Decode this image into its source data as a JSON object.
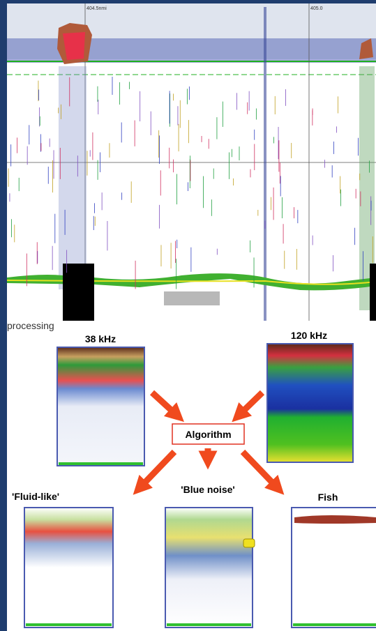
{
  "echogram": {
    "distance_labels": [
      "404.5nmi",
      "405.0"
    ]
  },
  "diagram": {
    "section_label": "processing",
    "inputs": [
      "38 kHz",
      "120 kHz"
    ],
    "algorithm": "Algorithm",
    "outputs": [
      "'Fluid-like'",
      "'Blue noise'",
      "Fish"
    ]
  }
}
